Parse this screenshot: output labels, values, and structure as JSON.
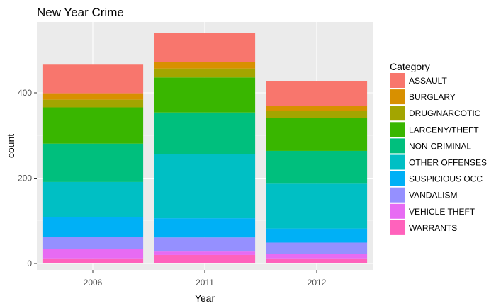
{
  "chart_data": {
    "type": "bar",
    "stacked": true,
    "title": "New Year Crime",
    "xlabel": "Year",
    "ylabel": "count",
    "ylim": [
      0,
      560
    ],
    "yticks": [
      0,
      200,
      400
    ],
    "grid": true,
    "legend_position": "right",
    "legend_title": "Category",
    "categories": [
      "2006",
      "2011",
      "2012"
    ],
    "series": [
      {
        "name": "ASSAULT",
        "color": "#F8766D",
        "values": [
          67,
          68,
          58
        ]
      },
      {
        "name": "BURGLARY",
        "color": "#D89000",
        "values": [
          15,
          15,
          12
        ]
      },
      {
        "name": "DRUG/NARCOTIC",
        "color": "#A3A500",
        "values": [
          18,
          21,
          16
        ]
      },
      {
        "name": "LARCENY/THEFT",
        "color": "#39B600",
        "values": [
          85,
          82,
          77
        ]
      },
      {
        "name": "NON-CRIMINAL",
        "color": "#00BF7D",
        "values": [
          90,
          98,
          77
        ]
      },
      {
        "name": "OTHER OFFENSES",
        "color": "#00BFC4",
        "values": [
          83,
          150,
          105
        ]
      },
      {
        "name": "SUSPICIOUS OCC",
        "color": "#00B0F6",
        "values": [
          46,
          45,
          33
        ]
      },
      {
        "name": "VANDALISM",
        "color": "#9590FF",
        "values": [
          28,
          33,
          27
        ]
      },
      {
        "name": "VEHICLE THEFT",
        "color": "#E76BF3",
        "values": [
          22,
          8,
          10
        ]
      },
      {
        "name": "WARRANTS",
        "color": "#FF62BC",
        "values": [
          12,
          20,
          12
        ]
      }
    ]
  }
}
